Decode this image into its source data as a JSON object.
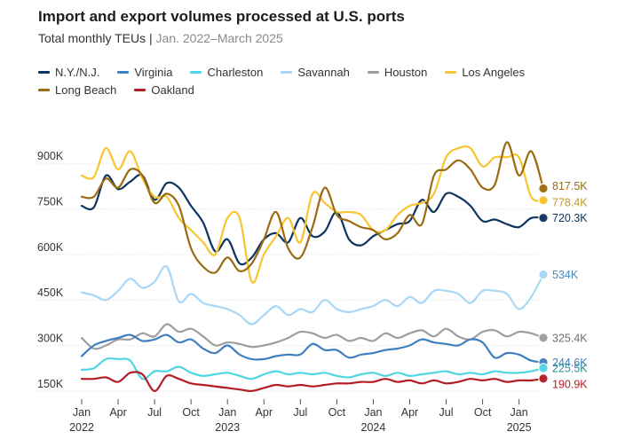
{
  "title": "Import and export volumes processed at U.S. ports",
  "subtitle_lead": "Total monthly TEUs",
  "subtitle_sep": "|",
  "subtitle_range": "Jan. 2022–March 2025",
  "chart_data": {
    "type": "line",
    "title": "Import and export volumes processed at U.S. ports",
    "subtitle": "Total monthly TEUs | Jan. 2022–March 2025",
    "ylim": [
      135000,
      1000000
    ],
    "x_months": 39,
    "y_ticks": [
      {
        "value": 150000,
        "label": "150K"
      },
      {
        "value": 300000,
        "label": "300K"
      },
      {
        "value": 450000,
        "label": "450K"
      },
      {
        "value": 600000,
        "label": "600K"
      },
      {
        "value": 750000,
        "label": "750K"
      },
      {
        "value": 900000,
        "label": "900K"
      }
    ],
    "x_ticks": [
      {
        "index": 0,
        "label": "Jan",
        "year": "2022"
      },
      {
        "index": 3,
        "label": "Apr",
        "year": ""
      },
      {
        "index": 6,
        "label": "Jul",
        "year": ""
      },
      {
        "index": 9,
        "label": "Oct",
        "year": ""
      },
      {
        "index": 12,
        "label": "Jan",
        "year": "2023"
      },
      {
        "index": 15,
        "label": "Apr",
        "year": ""
      },
      {
        "index": 18,
        "label": "Jul",
        "year": ""
      },
      {
        "index": 21,
        "label": "Oct",
        "year": ""
      },
      {
        "index": 24,
        "label": "Jan",
        "year": "2024"
      },
      {
        "index": 27,
        "label": "Apr",
        "year": ""
      },
      {
        "index": 30,
        "label": "Jul",
        "year": ""
      },
      {
        "index": 33,
        "label": "Oct",
        "year": ""
      },
      {
        "index": 36,
        "label": "Jan",
        "year": "2025"
      }
    ],
    "series": [
      {
        "name": "N.Y./N.J.",
        "color": "#0e3460",
        "end_label": "720.3K",
        "values": [
          760,
          755,
          860,
          815,
          840,
          860,
          780,
          835,
          820,
          760,
          705,
          610,
          650,
          570,
          590,
          650,
          670,
          640,
          720,
          660,
          675,
          740,
          650,
          630,
          660,
          680,
          700,
          710,
          780,
          740,
          800,
          790,
          760,
          710,
          715,
          700,
          690,
          720,
          720.3
        ]
      },
      {
        "name": "Virginia",
        "color": "#3d7fbf",
        "end_label": "244.6K",
        "values": [
          265,
          300,
          315,
          325,
          335,
          315,
          320,
          335,
          310,
          320,
          290,
          275,
          300,
          270,
          255,
          255,
          265,
          270,
          270,
          305,
          285,
          285,
          260,
          270,
          275,
          285,
          290,
          300,
          320,
          310,
          305,
          300,
          320,
          310,
          260,
          275,
          270,
          250,
          244.6
        ]
      },
      {
        "name": "Charleston",
        "color": "#4fd6e3",
        "end_label": "225.5K",
        "values": [
          220,
          225,
          255,
          255,
          250,
          190,
          215,
          215,
          230,
          210,
          200,
          205,
          210,
          200,
          190,
          205,
          215,
          205,
          210,
          205,
          210,
          200,
          195,
          205,
          210,
          200,
          210,
          200,
          205,
          210,
          215,
          205,
          210,
          205,
          215,
          210,
          210,
          215,
          225.5
        ]
      },
      {
        "name": "Savannah",
        "color": "#a8d8f5",
        "end_label": "534K",
        "values": [
          475,
          465,
          450,
          480,
          520,
          490,
          510,
          560,
          445,
          470,
          440,
          430,
          420,
          400,
          370,
          400,
          430,
          400,
          420,
          410,
          450,
          420,
          410,
          420,
          430,
          450,
          430,
          460,
          440,
          480,
          480,
          470,
          440,
          480,
          480,
          470,
          420,
          460,
          534
        ]
      },
      {
        "name": "Houston",
        "color": "#9e9e9e",
        "end_label": "325.4K",
        "values": [
          325,
          290,
          300,
          320,
          320,
          340,
          330,
          370,
          345,
          355,
          330,
          300,
          310,
          305,
          295,
          300,
          310,
          325,
          345,
          340,
          325,
          335,
          315,
          325,
          315,
          340,
          325,
          340,
          350,
          330,
          355,
          330,
          320,
          345,
          350,
          330,
          345,
          340,
          325.4
        ]
      },
      {
        "name": "Los Angeles",
        "color": "#f7c52f",
        "end_label": "778.4K",
        "values": [
          860,
          855,
          950,
          880,
          940,
          850,
          790,
          790,
          720,
          680,
          640,
          600,
          720,
          720,
          510,
          600,
          660,
          720,
          640,
          800,
          770,
          740,
          740,
          730,
          680,
          680,
          730,
          760,
          770,
          800,
          920,
          950,
          950,
          890,
          920,
          920,
          920,
          790,
          778.4
        ]
      },
      {
        "name": "Long Beach",
        "color": "#9a6b10",
        "end_label": "817.5K",
        "values": [
          790,
          790,
          850,
          820,
          880,
          860,
          770,
          800,
          760,
          620,
          560,
          540,
          590,
          545,
          570,
          650,
          740,
          620,
          590,
          690,
          820,
          730,
          710,
          690,
          680,
          650,
          670,
          730,
          700,
          860,
          880,
          910,
          880,
          820,
          830,
          970,
          860,
          940,
          817.5
        ]
      },
      {
        "name": "Oakland",
        "color": "#b31d24",
        "end_label": "190.9K",
        "values": [
          190,
          190,
          195,
          180,
          210,
          205,
          150,
          200,
          190,
          175,
          170,
          165,
          160,
          155,
          150,
          160,
          170,
          165,
          170,
          165,
          170,
          175,
          175,
          180,
          180,
          190,
          180,
          185,
          175,
          185,
          175,
          180,
          190,
          185,
          190,
          180,
          185,
          185,
          190.9
        ]
      }
    ]
  }
}
